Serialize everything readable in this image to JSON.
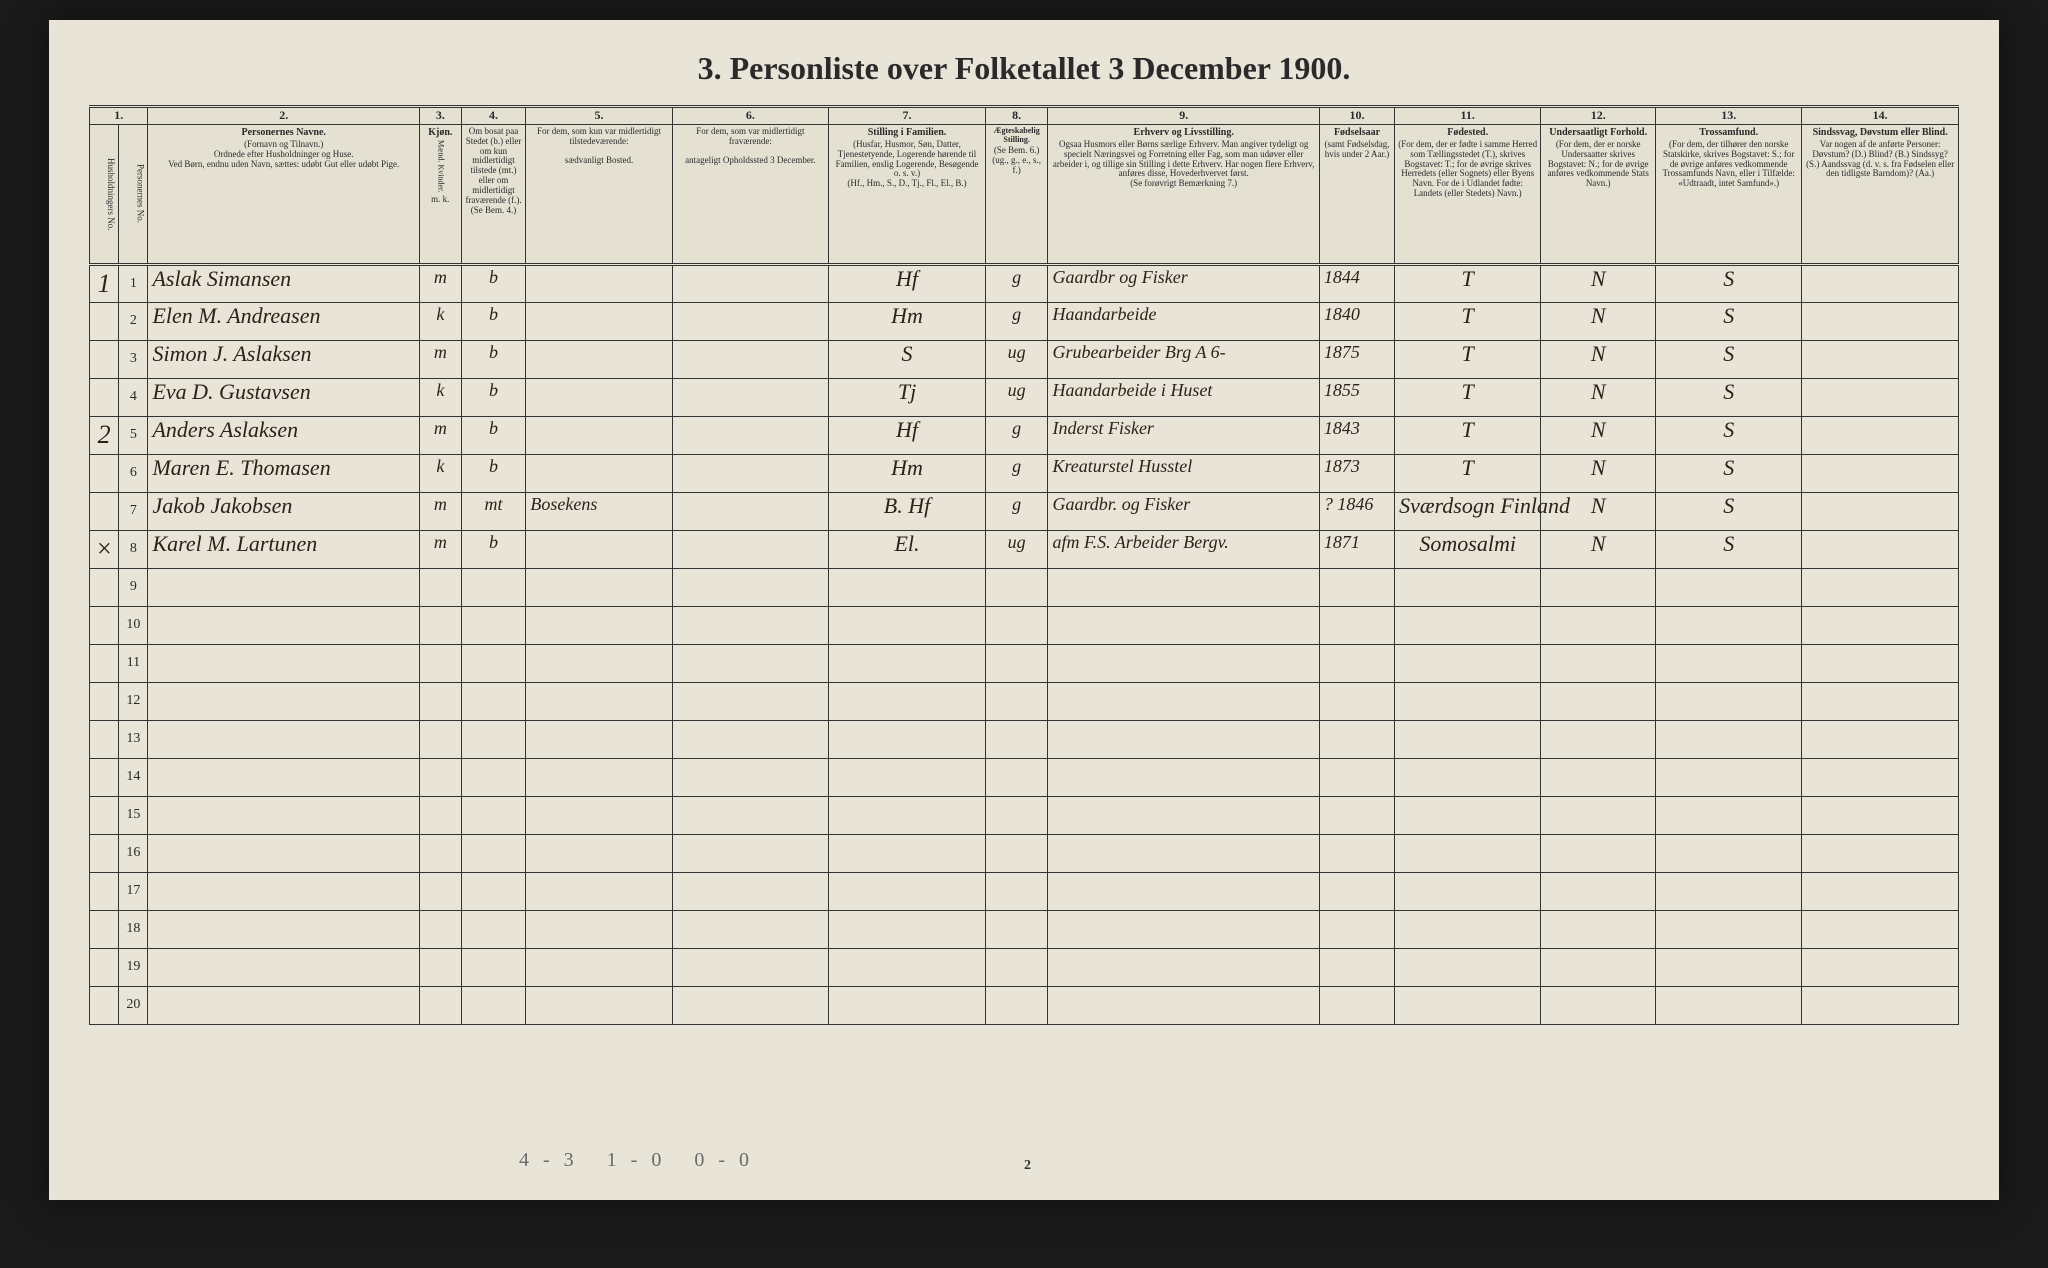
{
  "title": "3. Personliste over Folketallet 3 December 1900.",
  "columns": {
    "c1": "1.",
    "c2": "2.",
    "c3": "3.",
    "c4": "4.",
    "c5": "5.",
    "c6": "6.",
    "c7": "7.",
    "c8": "8.",
    "c9": "9.",
    "c10": "10.",
    "c11": "11.",
    "c12": "12.",
    "c13": "13.",
    "c14": "14."
  },
  "headers": {
    "h1a": "Husholdningers No.",
    "h1b": "Personernes No.",
    "h2t": "Personernes Navne.",
    "h2": "(Fornavn og Tilnavn.)\nOrdnede efter Husholdninger og Huse.\nVed Børn, endnu uden Navn, sættes: udøbt Gut eller udøbt Pige.",
    "h3t": "Kjøn.",
    "h3": "Mænd. Kvinder.",
    "h3b": "m. k.",
    "h4": "Om bosat paa Stedet (b.) eller om kun midlertidigt tilstede (mt.) eller om midlertidigt fraværende (f.).",
    "h4b": "(Se Bem. 4.)",
    "h5": "For dem, som kun var midlertidigt tilstedeværende:",
    "h5b": "sædvanligt Bosted.",
    "h6": "For dem, som var midlertidigt fraværende:",
    "h6b": "antageligt Opholdssted 3 December.",
    "h7t": "Stilling i Familien.",
    "h7": "(Husfar, Husmor, Søn, Datter, Tjenestetyende, Logerende hørende til Familien, enslig Logerende, Besøgende o. s. v.)",
    "h7b": "(Hf., Hm., S., D., Tj., Fl., El., B.)",
    "h8t": "Ægteskabelig Stilling.",
    "h8": "(Se Bem. 6.)",
    "h8b": "(ug., g., e., s., f.)",
    "h9t": "Erhverv og Livsstilling.",
    "h9": "Ogsaa Husmors eller Børns særlige Erhverv. Man angiver tydeligt og specielt Næringsvei og Forretning eller Fag, som man udøver eller arbeider i, og tillige sin Stilling i dette Erhverv. Har nogen flere Erhverv, anføres disse, Hovederhvervet først.",
    "h9b": "(Se forøvrigt Bemærkning 7.)",
    "h10t": "Fødselsaar",
    "h10": "(samt Fødselsdag, hvis under 2 Aar.)",
    "h11t": "Fødested.",
    "h11": "(For dem, der er fødte i samme Herred som Tællingsstedet (T.), skrives Bogstavet: T.; for de øvrige skrives Herredets (eller Sognets) eller Byens Navn. For de i Udlandet fødte: Landets (eller Stedets) Navn.)",
    "h12t": "Undersaatligt Forhold.",
    "h12": "(For dem, der er norske Undersaatter skrives Bogstavet: N.; for de øvrige anføres vedkommende Stats Navn.)",
    "h13t": "Trossamfund.",
    "h13": "(For dem, der tilhører den norske Statskirke, skrives Bogstavet: S.; for de øvrige anføres vedkommende Trossamfunds Navn, eller i Tilfælde: «Udtraadt, intet Samfund».)",
    "h14t": "Sindssvag, Døvstum eller Blind.",
    "h14": "Var nogen af de anførte Personer: Døvstum? (D.) Blind? (B.) Sindssyg? (S.) Aandssvag (d. v. s. fra Fødselen eller den tidligste Barndom)? (Aa.)"
  },
  "rows": [
    {
      "hh": "1",
      "pn": "1",
      "name": "Aslak Simansen",
      "sex": "m",
      "res": "b",
      "away": "",
      "absent": "",
      "pos": "Hf",
      "mar": "g",
      "occ": "Gaardbr og Fisker",
      "year": "1844",
      "born": "T",
      "nat": "N",
      "rel": "S",
      "dis": ""
    },
    {
      "hh": "",
      "pn": "2",
      "name": "Elen M. Andreasen",
      "sex": "k",
      "res": "b",
      "away": "",
      "absent": "",
      "pos": "Hm",
      "mar": "g",
      "occ": "Haandarbeide",
      "year": "1840",
      "born": "T",
      "nat": "N",
      "rel": "S",
      "dis": ""
    },
    {
      "hh": "",
      "pn": "3",
      "name": "Simon J. Aslaksen",
      "sex": "m",
      "res": "b",
      "away": "",
      "absent": "",
      "pos": "S",
      "mar": "ug",
      "occ": "Grubearbeider Brg A 6-",
      "year": "1875",
      "born": "T",
      "nat": "N",
      "rel": "S",
      "dis": ""
    },
    {
      "hh": "",
      "pn": "4",
      "name": "Eva D. Gustavsen",
      "sex": "k",
      "res": "b",
      "away": "",
      "absent": "",
      "pos": "Tj",
      "mar": "ug",
      "occ": "Haandarbeide i Huset",
      "year": "1855",
      "born": "T",
      "nat": "N",
      "rel": "S",
      "dis": ""
    },
    {
      "hh": "2",
      "pn": "5",
      "name": "Anders Aslaksen",
      "sex": "m",
      "res": "b",
      "away": "",
      "absent": "",
      "pos": "Hf",
      "mar": "g",
      "occ": "Inderst Fisker",
      "year": "1843",
      "born": "T",
      "nat": "N",
      "rel": "S",
      "dis": ""
    },
    {
      "hh": "",
      "pn": "6",
      "name": "Maren E. Thomasen",
      "sex": "k",
      "res": "b",
      "away": "",
      "absent": "",
      "pos": "Hm",
      "mar": "g",
      "occ": "Kreaturstel Husstel",
      "year": "1873",
      "born": "T",
      "nat": "N",
      "rel": "S",
      "dis": ""
    },
    {
      "hh": "",
      "pn": "7",
      "name": "Jakob Jakobsen",
      "sex": "m",
      "res": "mt",
      "away": "Bosekens",
      "absent": "",
      "pos": "B. Hf",
      "mar": "g",
      "occ": "Gaardbr. og Fisker",
      "year": "? 1846",
      "born": "Sværdsogn Finland",
      "nat": "N",
      "rel": "S",
      "dis": ""
    },
    {
      "hh": "×",
      "pn": "8",
      "name": "Karel M. Lartunen",
      "sex": "m",
      "res": "b",
      "away": "",
      "absent": "",
      "pos": "El.",
      "mar": "ug",
      "occ": "afm F.S. Arbeider Bergv.",
      "year": "1871",
      "born": "Somosalmi",
      "nat": "N",
      "rel": "S",
      "dis": ""
    }
  ],
  "blank_rows": [
    "9",
    "10",
    "11",
    "12",
    "13",
    "14",
    "15",
    "16",
    "17",
    "18",
    "19",
    "20"
  ],
  "footer": "4-3   1-0   0-0",
  "pagenum": "2",
  "colwidths": {
    "c1a": "28px",
    "c1b": "28px",
    "c2": "260px",
    "c3": "40px",
    "c4": "62px",
    "c5": "140px",
    "c6": "150px",
    "c7": "150px",
    "c8": "60px",
    "c9": "260px",
    "c10": "72px",
    "c11": "140px",
    "c12": "110px",
    "c13": "140px",
    "c14": "150px"
  }
}
